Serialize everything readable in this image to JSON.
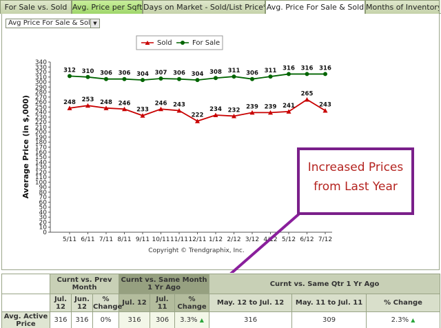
{
  "tabs": [
    {
      "label": "For Sale vs. Sold",
      "state": "normal"
    },
    {
      "label": "Avg. Price per Sqft",
      "state": "green"
    },
    {
      "label": "Days on Market - Sold/List Price%",
      "state": "normal"
    },
    {
      "label": "Avg. Price For Sale & Sold",
      "state": "active"
    },
    {
      "label": "Months of Inventory",
      "state": "normal"
    }
  ],
  "select": {
    "value": "Avg Price For Sale & Sold"
  },
  "colors": {
    "sold": "#c80000",
    "for_sale": "#006400",
    "callout_border": "#7a1f8a",
    "callout_text": "#b4231f",
    "arrow": "#8a1f9c"
  },
  "chart_data": {
    "type": "line",
    "categories": [
      "5/11",
      "6/11",
      "7/11",
      "8/11",
      "9/11",
      "10/11",
      "11/11",
      "12/11",
      "1/12",
      "2/12",
      "3/12",
      "4/12",
      "5/12",
      "6/12",
      "7/12"
    ],
    "series": [
      {
        "name": "Sold",
        "values": [
          248,
          253,
          248,
          246,
          233,
          246,
          243,
          222,
          234,
          232,
          239,
          239,
          241,
          265,
          243
        ]
      },
      {
        "name": "For Sale",
        "values": [
          312,
          310,
          306,
          306,
          304,
          307,
          306,
          304,
          308,
          311,
          306,
          311,
          316,
          316,
          316
        ]
      }
    ],
    "ylabel": "Average Price (in $,000)",
    "xlabel": "",
    "ylim": [
      0,
      340
    ],
    "yticks": [
      0,
      10,
      20,
      30,
      40,
      50,
      60,
      70,
      80,
      90,
      100,
      110,
      120,
      130,
      140,
      150,
      160,
      170,
      180,
      190,
      200,
      210,
      220,
      230,
      240,
      250,
      260,
      270,
      280,
      290,
      300,
      310,
      320,
      330,
      340
    ],
    "legend_position": "top-center",
    "grid": false,
    "footer": "Copyright © Trendgraphix, Inc."
  },
  "callout": {
    "line1": "Increased Prices",
    "line2": "from Last Year"
  },
  "table": {
    "groups": [
      "Curnt vs. Prev Month",
      "Curnt vs. Same Month 1 Yr Ago",
      "Curnt vs. Same Qtr 1 Yr Ago"
    ],
    "subheaders": [
      "Jul. 12",
      "Jun. 12",
      "% Change",
      "Jul. 12",
      "Jul. 11",
      "% Change",
      "May. 12 to Jul. 12",
      "May. 11 to Jul. 11",
      "% Change"
    ],
    "row_label": "Avg. Active Price",
    "values": [
      "316",
      "316",
      "0%",
      "316",
      "306",
      "3.3%",
      "316",
      "309",
      "2.3%"
    ]
  }
}
